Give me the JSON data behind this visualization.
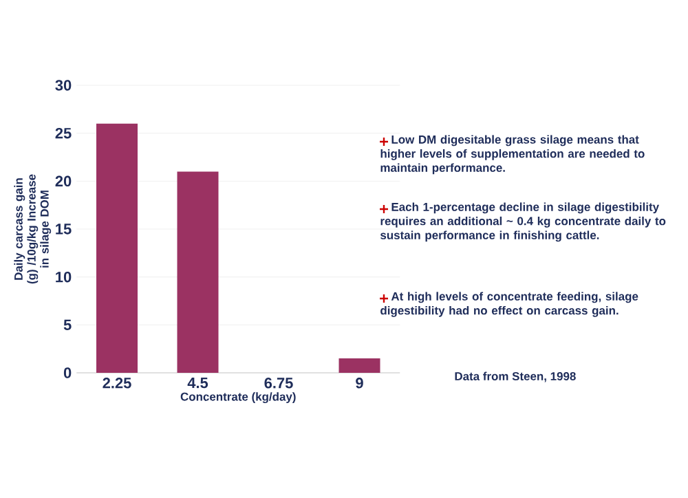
{
  "chart_data": {
    "type": "bar",
    "xlabel": "Concentrate (kg/day)",
    "ylabel": "Daily carcass gain (g) /10g/kg Increase in silage DOM",
    "categories": [
      "2.25",
      "4.5",
      "6.75",
      "9"
    ],
    "values": [
      26,
      21,
      null,
      1.5
    ],
    "color": "#9b3262",
    "ylim": [
      0,
      30
    ],
    "yticks": [
      0,
      5,
      10,
      15,
      20,
      25,
      30
    ],
    "grid": "y",
    "annotations": [
      "Low DM digesitable grass silage means that higher levels of supplementation are needed to maintain performance.",
      "Each 1-percentage decline in silage digestibility requires an additional ~ 0.4 kg concentrate daily to sustain performance in finishing cattle.",
      "At high levels of concentrate feeding, silage digestibility had no effect on carcass gain.",
      "Data from Steen, 1998"
    ]
  }
}
